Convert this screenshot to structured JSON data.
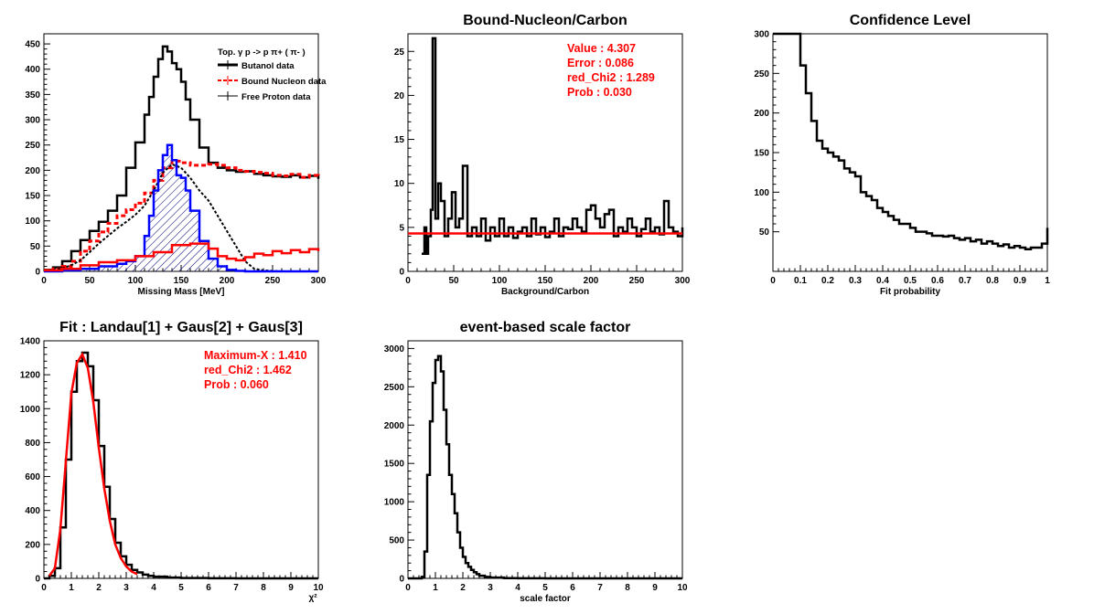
{
  "chart_data": [
    {
      "id": "p1",
      "type": "line",
      "title": "",
      "xlabel": "Missing Mass [MeV]",
      "ylabel": "",
      "xlim": [
        0,
        300
      ],
      "ylim": [
        0,
        470
      ],
      "xticks": [
        0,
        50,
        100,
        150,
        200,
        250,
        300
      ],
      "yticks": [
        0,
        50,
        100,
        150,
        200,
        250,
        300,
        350,
        400,
        450
      ],
      "legend": {
        "header": "Top.  γ p -> p  π+ ( π- )",
        "entries": [
          "Butanol data",
          "Bound Nucleon data",
          "Free Proton data"
        ],
        "placement": "top-right"
      },
      "series": [
        {
          "name": "Butanol data",
          "color": "#000000",
          "style": "solid-thick",
          "x": [
            0,
            10,
            20,
            30,
            40,
            50,
            60,
            70,
            80,
            90,
            100,
            110,
            115,
            120,
            125,
            130,
            135,
            140,
            145,
            150,
            155,
            160,
            170,
            180,
            190,
            200,
            210,
            220,
            230,
            240,
            250,
            260,
            270,
            280,
            290,
            300
          ],
          "y": [
            3,
            8,
            20,
            40,
            62,
            80,
            98,
            120,
            150,
            205,
            255,
            310,
            345,
            385,
            420,
            445,
            435,
            412,
            400,
            375,
            340,
            300,
            245,
            215,
            205,
            200,
            197,
            198,
            193,
            190,
            188,
            187,
            190,
            186,
            189,
            183
          ]
        },
        {
          "name": "Bound Nucleon data",
          "color": "#ff0000",
          "style": "dashed",
          "x": [
            0,
            10,
            20,
            30,
            40,
            50,
            60,
            70,
            80,
            90,
            100,
            110,
            120,
            130,
            140,
            150,
            160,
            170,
            180,
            190,
            200,
            210,
            220,
            230,
            240,
            250,
            260,
            270,
            280,
            290,
            300
          ],
          "y": [
            2,
            5,
            10,
            20,
            40,
            60,
            78,
            95,
            110,
            122,
            135,
            155,
            180,
            205,
            218,
            215,
            210,
            210,
            212,
            210,
            205,
            200,
            198,
            196,
            194,
            190,
            189,
            192,
            186,
            190,
            185
          ]
        },
        {
          "name": "Free Proton data",
          "color": "#000000",
          "style": "thin",
          "x": [
            0,
            10,
            20,
            30,
            40,
            50,
            60,
            70,
            80,
            90,
            100,
            110,
            120,
            130,
            140,
            150,
            160,
            170,
            180,
            190,
            200,
            210,
            220,
            230,
            240,
            250,
            260,
            270,
            280,
            290,
            300
          ],
          "y": [
            1,
            3,
            6,
            12,
            22,
            38,
            55,
            70,
            85,
            98,
            112,
            130,
            160,
            195,
            212,
            205,
            185,
            160,
            140,
            110,
            80,
            50,
            20,
            5,
            2,
            1,
            0,
            0,
            0,
            0,
            0
          ]
        },
        {
          "name": "",
          "color": "#0000ff",
          "style": "solid-thick",
          "x": [
            0,
            20,
            40,
            60,
            80,
            90,
            100,
            110,
            115,
            120,
            125,
            130,
            135,
            140,
            145,
            150,
            155,
            160,
            170,
            180,
            190,
            200,
            210,
            220,
            230,
            240,
            250,
            260,
            300
          ],
          "y": [
            0,
            2,
            5,
            10,
            15,
            20,
            30,
            70,
            110,
            160,
            200,
            230,
            250,
            220,
            190,
            185,
            160,
            120,
            60,
            25,
            10,
            3,
            1,
            0,
            0,
            0,
            0,
            0,
            0
          ]
        },
        {
          "name": "",
          "color": "#ff0000",
          "style": "solid-thick",
          "x": [
            0,
            20,
            40,
            60,
            80,
            100,
            120,
            140,
            160,
            180,
            190,
            200,
            210,
            220,
            230,
            240,
            250,
            260,
            270,
            280,
            290,
            300
          ],
          "y": [
            2,
            5,
            12,
            18,
            22,
            30,
            38,
            52,
            55,
            45,
            30,
            25,
            22,
            28,
            35,
            32,
            40,
            36,
            42,
            38,
            44,
            40
          ]
        }
      ]
    },
    {
      "id": "p2",
      "type": "line",
      "title": "Bound-Nucleon/Carbon",
      "xlabel": "Background/Carbon",
      "ylabel": "",
      "xlim": [
        0,
        300
      ],
      "ylim": [
        0,
        27
      ],
      "xticks": [
        0,
        50,
        100,
        150,
        200,
        250,
        300
      ],
      "yticks": [
        0,
        5,
        10,
        15,
        20,
        25
      ],
      "annotations": [
        "Value : 4.307",
        "Error : 0.086",
        "red_Chi2 : 1.289",
        "Prob : 0.030"
      ],
      "fit_value": 4.307,
      "series": [
        {
          "name": "",
          "color": "#000000",
          "style": "step",
          "x": [
            15,
            18,
            20,
            22,
            25,
            27,
            30,
            33,
            36,
            40,
            44,
            48,
            52,
            56,
            60,
            65,
            70,
            75,
            80,
            85,
            90,
            95,
            100,
            105,
            110,
            115,
            120,
            125,
            130,
            135,
            140,
            145,
            150,
            155,
            160,
            165,
            170,
            175,
            180,
            185,
            190,
            195,
            200,
            205,
            210,
            215,
            220,
            225,
            230,
            235,
            240,
            245,
            250,
            255,
            260,
            265,
            270,
            275,
            280,
            285,
            290,
            295,
            300
          ],
          "y": [
            2,
            5,
            2,
            4,
            7,
            26.5,
            6,
            10,
            8,
            4,
            6,
            9,
            5,
            6,
            12,
            4,
            5,
            4,
            6,
            3.5,
            5,
            4,
            6,
            4,
            5,
            3.8,
            4.5,
            5,
            4,
            6,
            4.2,
            5,
            3.9,
            4.5,
            6,
            4,
            5,
            4.8,
            6,
            5,
            4.5,
            7,
            7.5,
            6,
            5,
            6.5,
            7,
            4,
            5,
            4.5,
            6,
            5,
            4,
            4.8,
            6,
            4.5,
            5,
            4.2,
            8,
            5,
            4.5,
            4,
            5
          ]
        },
        {
          "name": "",
          "color": "#ff0000",
          "style": "fit",
          "x": [
            0,
            300
          ],
          "y": [
            4.307,
            4.307
          ]
        }
      ]
    },
    {
      "id": "p3",
      "type": "line",
      "title": "Confidence Level",
      "xlabel": "Fit probability",
      "ylabel": "",
      "xlim": [
        0,
        1
      ],
      "ylim": [
        0,
        300
      ],
      "xticks": [
        0,
        0.1,
        0.2,
        0.3,
        0.4,
        0.5,
        0.6,
        0.7,
        0.8,
        0.9,
        1
      ],
      "yticks": [
        50,
        100,
        150,
        200,
        250,
        300
      ],
      "series": [
        {
          "name": "",
          "color": "#000000",
          "style": "step",
          "x": [
            0,
            0.02,
            0.04,
            0.06,
            0.08,
            0.1,
            0.12,
            0.14,
            0.16,
            0.18,
            0.2,
            0.22,
            0.24,
            0.26,
            0.28,
            0.3,
            0.32,
            0.34,
            0.36,
            0.38,
            0.4,
            0.42,
            0.44,
            0.46,
            0.48,
            0.5,
            0.52,
            0.54,
            0.56,
            0.58,
            0.6,
            0.62,
            0.64,
            0.66,
            0.68,
            0.7,
            0.72,
            0.74,
            0.76,
            0.78,
            0.8,
            0.82,
            0.84,
            0.86,
            0.88,
            0.9,
            0.92,
            0.94,
            0.96,
            0.98,
            1.0
          ],
          "y": [
            300,
            300,
            300,
            300,
            300,
            260,
            225,
            190,
            165,
            155,
            150,
            145,
            140,
            130,
            125,
            120,
            100,
            95,
            90,
            80,
            75,
            70,
            65,
            60,
            60,
            55,
            50,
            50,
            48,
            45,
            45,
            44,
            45,
            42,
            40,
            42,
            38,
            40,
            35,
            38,
            35,
            32,
            34,
            30,
            32,
            30,
            28,
            30,
            30,
            35,
            55
          ]
        }
      ]
    },
    {
      "id": "p4",
      "type": "line",
      "title": "Fit : Landau[1] + Gaus[2] + Gaus[3]",
      "xlabel": "χ²",
      "ylabel": "",
      "xlim": [
        0,
        10
      ],
      "ylim": [
        0,
        1400
      ],
      "xticks": [
        0,
        1,
        2,
        3,
        4,
        5,
        6,
        7,
        8,
        9,
        10
      ],
      "yticks": [
        0,
        200,
        400,
        600,
        800,
        1000,
        1200,
        1400
      ],
      "annotations": [
        "Maximum-X : 1.410",
        "red_Chi2 : 1.462",
        "Prob : 0.060"
      ],
      "series": [
        {
          "name": "",
          "color": "#000000",
          "style": "step",
          "x": [
            0,
            0.2,
            0.4,
            0.6,
            0.8,
            1.0,
            1.2,
            1.4,
            1.6,
            1.8,
            2.0,
            2.2,
            2.4,
            2.6,
            2.8,
            3.0,
            3.2,
            3.4,
            3.6,
            3.8,
            4.0,
            4.5,
            5,
            6,
            7,
            8,
            9,
            10
          ],
          "y": [
            0,
            15,
            60,
            300,
            700,
            1100,
            1280,
            1330,
            1250,
            1050,
            780,
            540,
            350,
            210,
            130,
            80,
            50,
            35,
            22,
            15,
            10,
            5,
            2,
            1,
            0,
            0,
            0,
            0
          ]
        },
        {
          "name": "",
          "color": "#ff0000",
          "style": "fit",
          "x": [
            0.2,
            0.4,
            0.6,
            0.8,
            1.0,
            1.2,
            1.4,
            1.6,
            1.8,
            2.0,
            2.2,
            2.4,
            2.6,
            2.8,
            3.0,
            3.2,
            3.4
          ],
          "y": [
            15,
            60,
            290,
            690,
            1090,
            1270,
            1320,
            1240,
            1040,
            770,
            530,
            340,
            200,
            120,
            70,
            40,
            25
          ]
        }
      ]
    },
    {
      "id": "p5",
      "type": "line",
      "title": "event-based scale factor",
      "xlabel": "scale factor",
      "ylabel": "",
      "xlim": [
        0,
        10
      ],
      "ylim": [
        0,
        3100
      ],
      "xticks": [
        0,
        1,
        2,
        3,
        4,
        5,
        6,
        7,
        8,
        9,
        10
      ],
      "yticks": [
        0,
        500,
        1000,
        1500,
        2000,
        2500,
        3000
      ],
      "series": [
        {
          "name": "",
          "color": "#000000",
          "style": "step",
          "x": [
            0,
            0.5,
            0.6,
            0.7,
            0.8,
            0.9,
            1.0,
            1.1,
            1.2,
            1.3,
            1.4,
            1.5,
            1.6,
            1.7,
            1.8,
            1.9,
            2.0,
            2.1,
            2.2,
            2.3,
            2.4,
            2.5,
            2.6,
            2.8,
            3.0,
            3.5,
            4,
            5,
            10
          ],
          "y": [
            0,
            20,
            350,
            1350,
            2050,
            2550,
            2850,
            2900,
            2700,
            2200,
            1750,
            1350,
            1100,
            850,
            600,
            400,
            280,
            200,
            150,
            110,
            80,
            55,
            35,
            20,
            10,
            3,
            1,
            0,
            0
          ]
        }
      ]
    }
  ]
}
